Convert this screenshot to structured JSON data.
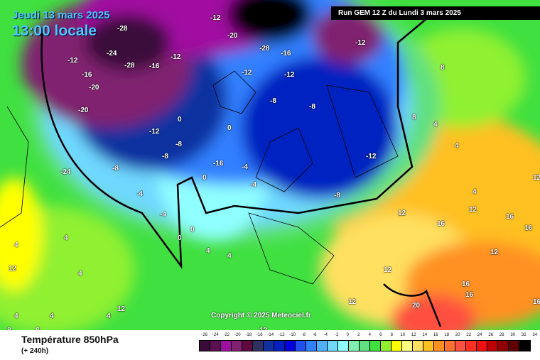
{
  "header": {
    "date": "Jeudi 13 mars 2025",
    "time": "13:00 locale",
    "run": "Run GEM 12 Z du Lundi 3 mars 2025"
  },
  "copyright": "Copyright © 2025 Meteociel.fr",
  "footer": {
    "title": "Température 850hPa",
    "subtitle": "(+ 240h)"
  },
  "legend": {
    "labels": [
      "-26",
      "-24",
      "-22",
      "-20",
      "-18",
      "-16",
      "-14",
      "-12",
      "-10",
      "-8",
      "-6",
      "-4",
      "-2",
      "0",
      "2",
      "4",
      "6",
      "8",
      "10",
      "12",
      "14",
      "16",
      "18",
      "20",
      "22",
      "24",
      "26",
      "28",
      "30",
      "32",
      "34"
    ],
    "colors": [
      "#3a0a3a",
      "#5a1050",
      "#a010a0",
      "#802070",
      "#600a40",
      "#303060",
      "#1030a0",
      "#0020c0",
      "#0000e0",
      "#2050f0",
      "#3080ff",
      "#50b0ff",
      "#70d8ff",
      "#90ffff",
      "#80f0b0",
      "#60e080",
      "#40e040",
      "#90f030",
      "#ffff00",
      "#ffff80",
      "#ffe060",
      "#ffc020",
      "#ff9020",
      "#ff7030",
      "#ff5040",
      "#ff3020",
      "#f01010",
      "#c00000",
      "#900000",
      "#600000",
      "#000000"
    ]
  },
  "map_labels": [
    "-28",
    "-24",
    "-12",
    "-16",
    "-20",
    "-28",
    "-24",
    "-16",
    "-12",
    "-20",
    "-20",
    "-12",
    "-8",
    "-8",
    "-4",
    "-12",
    "-16",
    "-12",
    "-12",
    "-8",
    "-8",
    "-8",
    "-12",
    "-8",
    "-4",
    "0",
    "0",
    "0",
    "0",
    "-4",
    "-4",
    "4",
    "4",
    "4",
    "4",
    "8",
    "8",
    "4",
    "4",
    "4",
    "12",
    "12",
    "12",
    "12",
    "16",
    "16",
    "16",
    "12",
    "12",
    "16",
    "20",
    "16",
    "16",
    "12",
    "8",
    "12",
    "4",
    "4",
    "4",
    "12",
    "8",
    "0",
    "4",
    "-16",
    "-28",
    "-12"
  ]
}
